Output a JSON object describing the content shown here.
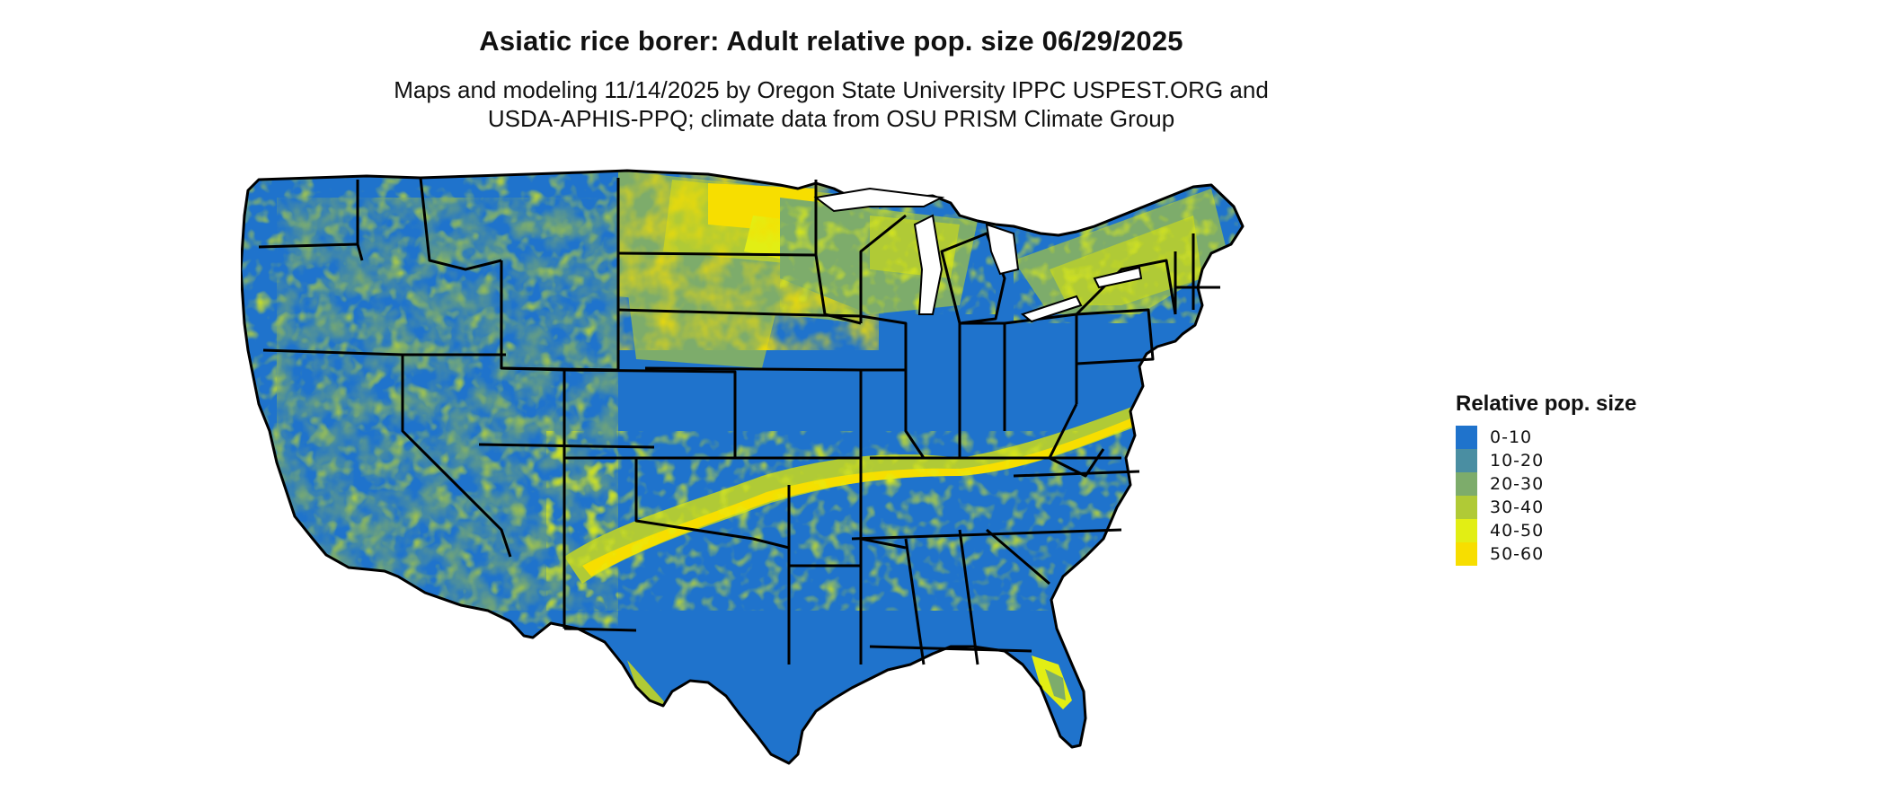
{
  "title": "Asiatic rice borer: Adult relative pop. size 06/29/2025",
  "subtitle_line1": "Maps and modeling 11/14/2025 by Oregon State University IPPC USPEST.ORG and",
  "subtitle_line2": "USDA-APHIS-PPQ; climate data from OSU PRISM Climate Group",
  "legend": {
    "title": "Relative pop. size",
    "items": [
      {
        "label": "0-10",
        "color": "#1f73cc"
      },
      {
        "label": "10-20",
        "color": "#4a8ea2"
      },
      {
        "label": "20-30",
        "color": "#7dac6b"
      },
      {
        "label": "30-40",
        "color": "#b0ca36"
      },
      {
        "label": "40-50",
        "color": "#e2ee14"
      },
      {
        "label": "50-60",
        "color": "#f7de00"
      }
    ]
  },
  "map": {
    "region": "Contiguous United States",
    "base_color": "#1f73cc",
    "border_color": "#000000"
  }
}
